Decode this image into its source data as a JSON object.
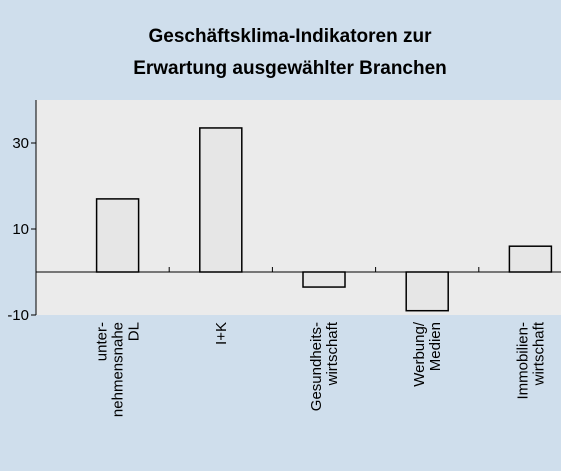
{
  "chart_data": {
    "type": "bar",
    "title": [
      "Geschäftsklima-Indikatoren zur",
      "Erwartung ausgewählter Branchen"
    ],
    "categories": [
      "unter-\nnehmensnahe\nDL",
      "I+K",
      "Gesundheits-\nwirtschaft",
      "Werbung/\nMedien",
      "Immobilien-\nwirtschaft"
    ],
    "values": [
      17,
      33.5,
      -3.5,
      -9,
      6
    ],
    "color": "#e6e6e6",
    "ylim": [
      -10,
      40
    ],
    "yticks": [
      -10,
      10,
      30
    ]
  }
}
